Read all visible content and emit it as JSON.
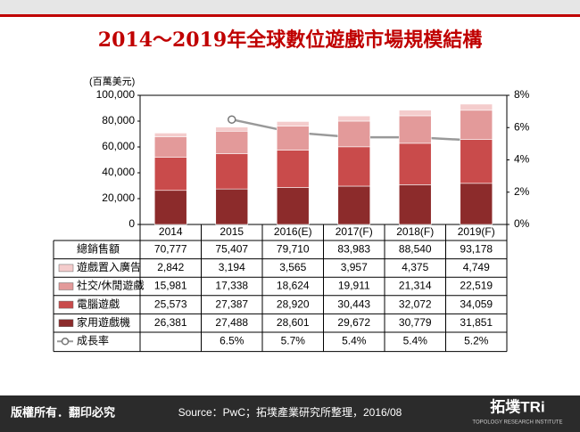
{
  "chart_data": {
    "type": "bar",
    "title": "2014～2019年全球數位遊戲市場規模結構",
    "y_unit": "(百萬美元)",
    "categories": [
      "2014",
      "2015",
      "2016(E)",
      "2017(F)",
      "2018(F)",
      "2019(F)"
    ],
    "ylim": [
      0,
      100000
    ],
    "yticks": [
      0,
      {
        "value": 20000,
        "label": "20,000"
      },
      {
        "value": 40000,
        "label": "40,000"
      },
      {
        "value": 60000,
        "label": "60,000"
      },
      {
        "value": 80000,
        "label": "80,000"
      },
      {
        "value": 100000,
        "label": "100,000"
      }
    ],
    "y2lim": [
      0,
      8
    ],
    "y2ticks": [
      {
        "value": 0,
        "label": "0%"
      },
      {
        "value": 2,
        "label": "2%"
      },
      {
        "value": 4,
        "label": "4%"
      },
      {
        "value": 6,
        "label": "6%"
      },
      {
        "value": 8,
        "label": "8%"
      }
    ],
    "totals": {
      "name": "總銷售額",
      "values": [
        70777,
        75407,
        79710,
        83983,
        88540,
        93178
      ],
      "value_labels": [
        "70,777",
        "75,407",
        "79,710",
        "83,983",
        "88,540",
        "93,178"
      ]
    },
    "series": [
      {
        "name": "遊戲置入廣告",
        "color": "#f4cccc",
        "values": [
          2842,
          3194,
          3565,
          3957,
          4375,
          4749
        ],
        "value_labels": [
          "2,842",
          "3,194",
          "3,565",
          "3,957",
          "4,375",
          "4,749"
        ]
      },
      {
        "name": "社交/休閒遊戲",
        "color": "#e39a9a",
        "values": [
          15981,
          17338,
          18624,
          19911,
          21314,
          22519
        ],
        "value_labels": [
          "15,981",
          "17,338",
          "18,624",
          "19,911",
          "21,314",
          "22,519"
        ]
      },
      {
        "name": "電腦遊戲",
        "color": "#c94b4b",
        "values": [
          25573,
          27387,
          28920,
          30443,
          32072,
          34059
        ],
        "value_labels": [
          "25,573",
          "27,387",
          "28,920",
          "30,443",
          "32,072",
          "34,059"
        ]
      },
      {
        "name": "家用遊戲機",
        "color": "#8c2b2b",
        "values": [
          26381,
          27488,
          28601,
          29672,
          30779,
          31851
        ],
        "value_labels": [
          "26,381",
          "27,488",
          "28,601",
          "29,672",
          "30,779",
          "31,851"
        ]
      },
      {
        "name": "成長率",
        "type": "line",
        "axis": "y2",
        "color": "#999999",
        "values": [
          null,
          6.5,
          5.7,
          5.4,
          5.4,
          5.2
        ],
        "value_labels": [
          null,
          "6.5%",
          "5.7%",
          "5.4%",
          "5.4%",
          "5.2%"
        ]
      }
    ]
  },
  "footer": {
    "copyright": "版權所有．翻印必究",
    "source": "Source：PwC；拓墣產業研究所整理，2016/08",
    "logo": "拓墣TRi",
    "logo_sub": "TOPOLOGY RESEARCH INSTITUTE"
  }
}
